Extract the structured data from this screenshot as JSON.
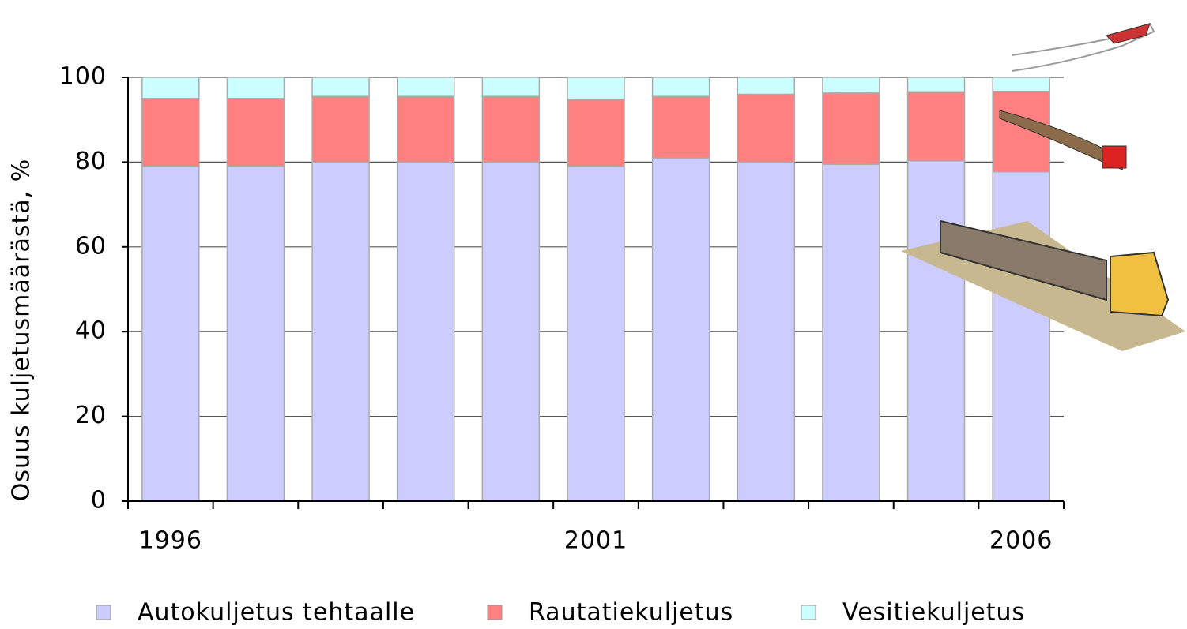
{
  "chart_data": {
    "type": "stacked_bar",
    "y_label": "Osuus kuljetusmäärästä, %",
    "categories": [
      "1996",
      null,
      null,
      null,
      null,
      "2001",
      null,
      null,
      null,
      null,
      "2006"
    ],
    "series": [
      {
        "name": "Autokuljetus tehtaalle",
        "color": "#ccccff",
        "values": [
          79,
          79,
          80,
          80,
          80,
          79,
          81,
          80,
          79.5,
          80.3,
          77.7
        ]
      },
      {
        "name": "Rautatiekuljetus",
        "color": "#ff8080",
        "values": [
          16,
          16,
          15.5,
          15.5,
          15.5,
          15.8,
          14.5,
          16,
          16.8,
          16.3,
          19
        ]
      },
      {
        "name": "Vesitiekuljetus",
        "color": "#ccffff",
        "values": [
          5,
          5,
          4.5,
          4.5,
          4.5,
          5.2,
          4.5,
          4,
          3.7,
          3.4,
          3.3
        ]
      }
    ],
    "ylim": [
      0,
      100
    ],
    "yticks": [
      0,
      20,
      40,
      60,
      80,
      100
    ],
    "grid": true,
    "legend": "bottom"
  }
}
